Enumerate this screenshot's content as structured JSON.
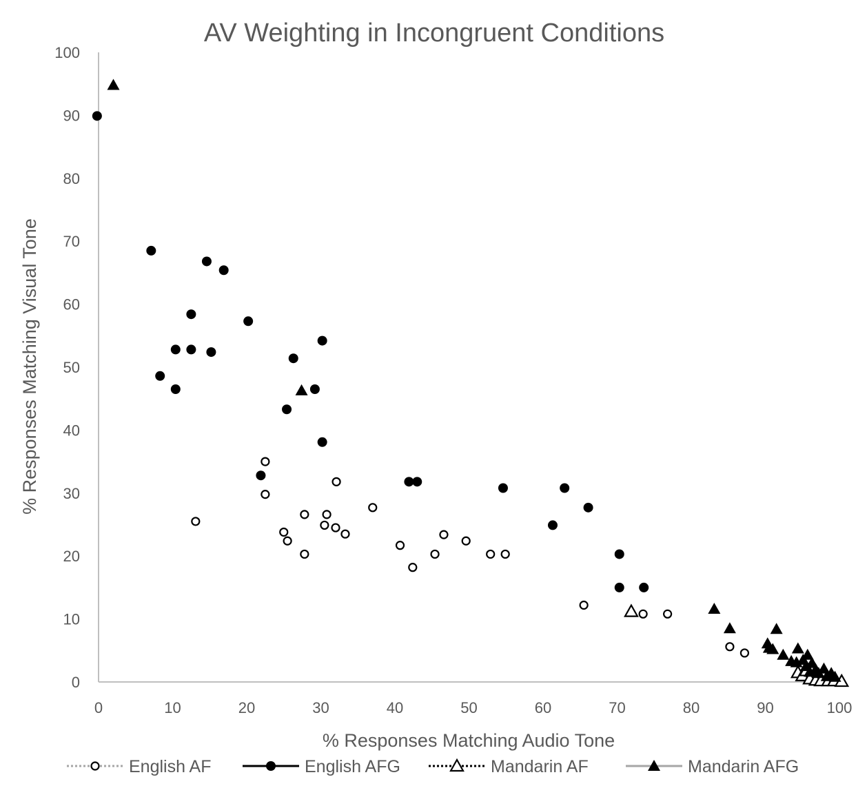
{
  "chart_data": {
    "type": "scatter",
    "title": "AV Weighting in Incongruent Conditions",
    "xlabel": "% Responses Matching Audio Tone",
    "ylabel": "% Responses Matching Visual Tone",
    "xlim": [
      0,
      100
    ],
    "ylim": [
      0,
      100
    ],
    "xticks": [
      "0",
      "10",
      "20",
      "30",
      "40",
      "50",
      "60",
      "70",
      "80",
      "90",
      "100"
    ],
    "yticks": [
      "0",
      "10",
      "20",
      "30",
      "40",
      "50",
      "60",
      "70",
      "80",
      "90",
      "100"
    ],
    "grid": false,
    "legend_position": "bottom",
    "series": [
      {
        "name": "English AF",
        "marker": "open-circle",
        "line_style": "dotted",
        "line_color": "#a6a6a6",
        "points": [
          [
            13.1,
            25.5
          ],
          [
            22.5,
            35
          ],
          [
            22.5,
            29.8
          ],
          [
            25,
            23.8
          ],
          [
            25.5,
            22.4
          ],
          [
            27.8,
            26.6
          ],
          [
            27.8,
            20.3
          ],
          [
            30.5,
            24.9
          ],
          [
            30.8,
            26.6
          ],
          [
            32,
            24.5
          ],
          [
            32.1,
            31.8
          ],
          [
            33.3,
            23.5
          ],
          [
            37,
            27.7
          ],
          [
            40.7,
            21.7
          ],
          [
            42.4,
            18.2
          ],
          [
            45.4,
            20.3
          ],
          [
            46.6,
            23.4
          ],
          [
            49.6,
            22.4
          ],
          [
            52.9,
            20.3
          ],
          [
            54.9,
            20.3
          ],
          [
            65.5,
            12.2
          ],
          [
            73.5,
            10.8
          ],
          [
            76.8,
            10.8
          ],
          [
            85.2,
            5.6
          ],
          [
            87.2,
            4.6
          ]
        ]
      },
      {
        "name": "English AFG",
        "marker": "filled-circle",
        "line_style": "solid",
        "line_color": "#000000",
        "points": [
          [
            -0.2,
            89.9
          ],
          [
            7.1,
            68.5
          ],
          [
            8.3,
            48.6
          ],
          [
            10.4,
            52.8
          ],
          [
            10.4,
            46.5
          ],
          [
            12.5,
            58.4
          ],
          [
            12.5,
            52.8
          ],
          [
            14.6,
            66.8
          ],
          [
            15.2,
            52.4
          ],
          [
            16.9,
            65.4
          ],
          [
            20.2,
            57.3
          ],
          [
            21.9,
            32.8
          ],
          [
            25.4,
            43.3
          ],
          [
            26.3,
            51.4
          ],
          [
            29.2,
            46.5
          ],
          [
            30.2,
            54.2
          ],
          [
            30.2,
            38.1
          ],
          [
            41.9,
            31.8
          ],
          [
            43,
            31.8
          ],
          [
            54.6,
            30.8
          ],
          [
            61.3,
            24.9
          ],
          [
            62.9,
            30.8
          ],
          [
            66.1,
            27.7
          ],
          [
            70.3,
            20.3
          ],
          [
            70.3,
            15
          ],
          [
            73.6,
            15
          ]
        ]
      },
      {
        "name": "Mandarin AF",
        "marker": "open-triangle",
        "line_style": "dotted",
        "line_color": "#000000",
        "points": [
          [
            71.9,
            11.2
          ],
          [
            94.4,
            1.5
          ],
          [
            95,
            1
          ],
          [
            95.5,
            1.8
          ],
          [
            96,
            0.5
          ],
          [
            96.8,
            0.3
          ],
          [
            97.5,
            0.2
          ],
          [
            98.5,
            0.2
          ],
          [
            99.3,
            0.2
          ],
          [
            100.3,
            0.1
          ]
        ]
      },
      {
        "name": "Mandarin AFG",
        "marker": "filled-triangle",
        "line_style": "solid",
        "line_color": "#a6a6a6",
        "points": [
          [
            2,
            94.8
          ],
          [
            27.4,
            46.3
          ],
          [
            83.1,
            11.6
          ],
          [
            85.2,
            8.5
          ],
          [
            90.3,
            6.1
          ],
          [
            90.5,
            5.4
          ],
          [
            91,
            5.2
          ],
          [
            91.5,
            8.4
          ],
          [
            92.4,
            4.3
          ],
          [
            93.5,
            3.3
          ],
          [
            94.2,
            3.1
          ],
          [
            94.4,
            5.3
          ],
          [
            95.1,
            3.5
          ],
          [
            95.5,
            2.5
          ],
          [
            95.7,
            4.3
          ],
          [
            96,
            1.6
          ],
          [
            96.3,
            3
          ],
          [
            96.8,
            2
          ],
          [
            97.2,
            1.4
          ],
          [
            97.9,
            2.1
          ],
          [
            98.3,
            0.9
          ],
          [
            98.9,
            1.4
          ],
          [
            99.4,
            0.8
          ]
        ]
      }
    ]
  }
}
